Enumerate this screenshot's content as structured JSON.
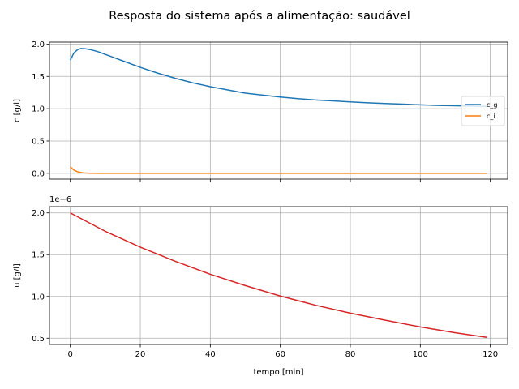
{
  "figure": {
    "title": "Resposta do sistema após a alimentação: saudável"
  },
  "chart_data": [
    {
      "type": "line",
      "ylabel": "c [g/l]",
      "xlabel": "",
      "xlim": [
        -5.95,
        124.95
      ],
      "ylim": [
        -0.09,
        2.03
      ],
      "xticks": [
        0,
        20,
        40,
        60,
        80,
        100,
        120
      ],
      "yticks": [
        0.0,
        0.5,
        1.0,
        1.5,
        2.0
      ],
      "ytick_labels": [
        "0.0",
        "0.5",
        "1.0",
        "1.5",
        "2.0"
      ],
      "grid": true,
      "legend_position": "right",
      "series": [
        {
          "name": "c_g",
          "color": "#1f77b4",
          "x": [
            0,
            1,
            2,
            3,
            4,
            5,
            6,
            8,
            10,
            12,
            15,
            20,
            25,
            30,
            35,
            40,
            45,
            50,
            55,
            60,
            65,
            70,
            75,
            80,
            85,
            90,
            95,
            100,
            105,
            110,
            115,
            119
          ],
          "y": [
            1.75,
            1.86,
            1.91,
            1.93,
            1.93,
            1.92,
            1.91,
            1.88,
            1.84,
            1.8,
            1.74,
            1.64,
            1.55,
            1.47,
            1.4,
            1.34,
            1.29,
            1.24,
            1.21,
            1.18,
            1.155,
            1.135,
            1.12,
            1.105,
            1.09,
            1.08,
            1.07,
            1.06,
            1.05,
            1.045,
            1.04,
            1.035
          ]
        },
        {
          "name": "c_i",
          "color": "#ff7f0e",
          "x": [
            0,
            1,
            2,
            3,
            4,
            5,
            6,
            8,
            10,
            20,
            40,
            60,
            80,
            100,
            119
          ],
          "y": [
            0.1,
            0.05,
            0.025,
            0.012,
            0.006,
            0.003,
            0.001,
            0.0,
            0.0,
            0.0,
            0.0,
            0.0,
            0.0,
            0.0,
            0.0
          ]
        }
      ]
    },
    {
      "type": "line",
      "ylabel": "u [g/l]",
      "xlabel": "tempo [min]",
      "offset_text": "1e−6",
      "xlim": [
        -5.95,
        124.95
      ],
      "ylim": [
        0.425,
        2.075
      ],
      "xticks": [
        0,
        20,
        40,
        60,
        80,
        100,
        120
      ],
      "xtick_labels": [
        "0",
        "20",
        "40",
        "60",
        "80",
        "100",
        "120"
      ],
      "yticks": [
        0.5,
        1.0,
        1.5,
        2.0
      ],
      "ytick_labels": [
        "0.5",
        "1.0",
        "1.5",
        "2.0"
      ],
      "grid": true,
      "series": [
        {
          "color": "#d62728",
          "x": [
            0,
            10,
            20,
            30,
            40,
            50,
            60,
            70,
            80,
            90,
            100,
            110,
            119
          ],
          "y": [
            2.0,
            1.78,
            1.59,
            1.42,
            1.265,
            1.13,
            1.005,
            0.895,
            0.8,
            0.715,
            0.635,
            0.565,
            0.51
          ]
        }
      ]
    }
  ]
}
